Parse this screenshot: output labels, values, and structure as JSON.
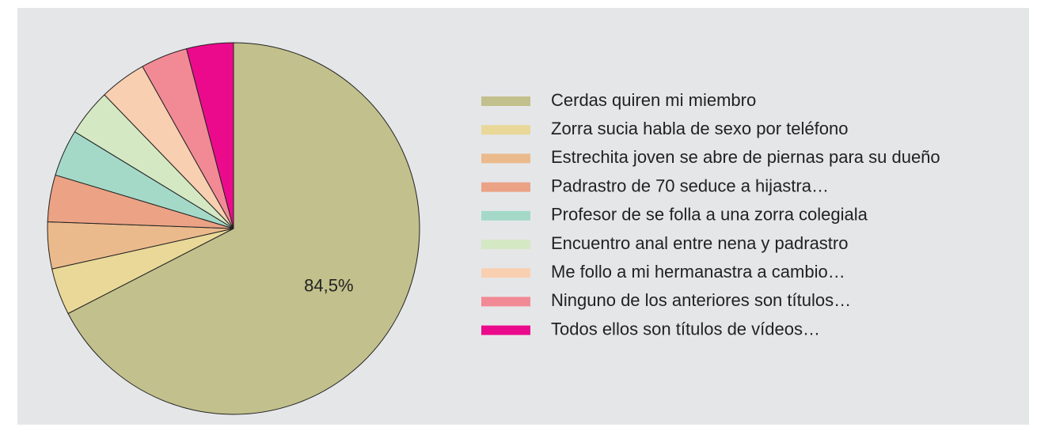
{
  "chart_data": {
    "type": "pie",
    "categories": [
      "Cerdas quiren mi miembro",
      "Zorra sucia habla de sexo por teléfono",
      "Estrechita joven se abre de piernas para su dueño",
      "Padrastro de 70 seduce a hijastra…",
      "Profesor de se folla a una zorra colegiala",
      "Encuentro anal entre nena y padrastro",
      "Me follo a mi hermanastra a cambio…",
      "Ninguno de los anteriores son títulos…",
      "Todos ellos son títulos de vídeos…"
    ],
    "values": [
      84.5,
      5.1,
      5.1,
      5.1,
      5.1,
      5.1,
      5.1,
      5.1,
      5.1
    ],
    "value_labels": [
      "84,5%",
      null,
      null,
      null,
      null,
      null,
      null,
      null,
      null
    ],
    "colors": [
      "#c2c08c",
      "#e9d898",
      "#ebba8c",
      "#eba285",
      "#a4d9c8",
      "#d4e8c4",
      "#f9cfb1",
      "#f28a96",
      "#ec0a8c"
    ],
    "legend": "right"
  }
}
